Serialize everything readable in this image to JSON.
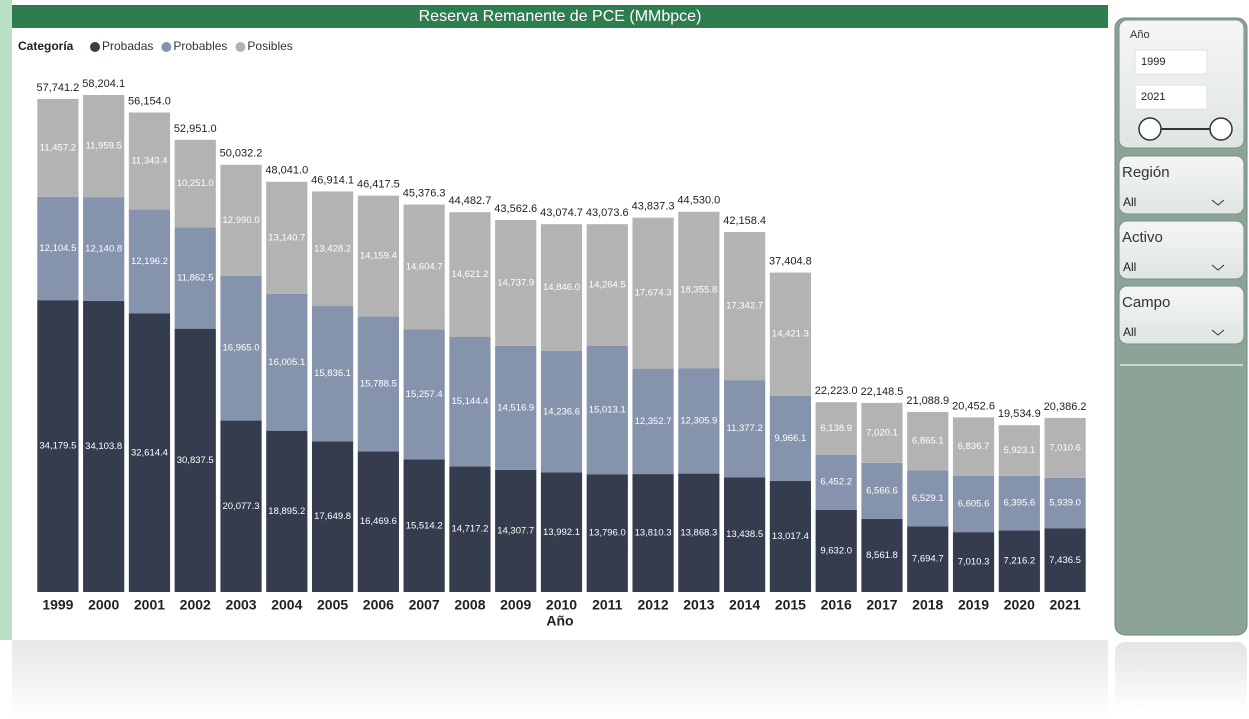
{
  "chart_data": {
    "type": "stacked_bar",
    "title": "Reserva Remanente de PCE (MMbpce)",
    "legend_title": "Categoría",
    "x_label": "Año",
    "categories": [
      "1999",
      "2000",
      "2001",
      "2002",
      "2003",
      "2004",
      "2005",
      "2006",
      "2007",
      "2008",
      "2009",
      "2010",
      "2011",
      "2012",
      "2013",
      "2014",
      "2015",
      "2016",
      "2017",
      "2018",
      "2019",
      "2020",
      "2021"
    ],
    "series": [
      {
        "name": "Probadas",
        "color": "#343c4d",
        "values": [
          34179.5,
          34103.8,
          32614.4,
          30837.5,
          20077.3,
          18895.2,
          17649.8,
          16469.6,
          15514.2,
          14717.2,
          14307.7,
          13992.1,
          13796.0,
          13810.3,
          13868.3,
          13438.5,
          13017.4,
          9632.0,
          8561.8,
          7694.7,
          7010.3,
          7216.2,
          7436.5
        ],
        "value_labels": [
          "34,179.5",
          "34,103.8",
          "32,614.4",
          "30,837.5",
          "20,077.3",
          "18,895.2",
          "17,649.8",
          "16,469.6",
          "15,514.2",
          "14,717.2",
          "14,307.7",
          "13,992.1",
          "13,796.0",
          "13,810.3",
          "13,868.3",
          "13,438.5",
          "13,017.4",
          "9,632.0",
          "8,561.8",
          "7,694.7",
          "7,010.3",
          "7,216.2",
          "7,436.5"
        ]
      },
      {
        "name": "Probables",
        "color": "#8593ad",
        "values": [
          12104.5,
          12140.8,
          12196.2,
          11862.5,
          16965.0,
          16005.1,
          15836.1,
          15788.5,
          15257.4,
          15144.4,
          14516.9,
          14236.6,
          15013.1,
          12352.7,
          12305.9,
          11377.2,
          9966.1,
          6452.2,
          6566.6,
          6529.1,
          6605.6,
          6395.6,
          5939.0
        ],
        "value_labels": [
          "12,104.5",
          "12,140.8",
          "12,196.2",
          "11,862.5",
          "16,965.0",
          "16,005.1",
          "15,836.1",
          "15,788.5",
          "15,257.4",
          "15,144.4",
          "14,516.9",
          "14,236.6",
          "15,013.1",
          "12,352.7",
          "12,305.9",
          "11,377.2",
          "9,966.1",
          "6,452.2",
          "6,566.6",
          "6,529.1",
          "6,605.6",
          "6,395.6",
          "5,939.0"
        ]
      },
      {
        "name": "Posibles",
        "color": "#b3b3b3",
        "values": [
          11457.2,
          11959.5,
          11343.4,
          10251.0,
          12990.0,
          13140.7,
          13428.2,
          14159.4,
          14604.7,
          14621.2,
          14737.9,
          14846.0,
          14264.5,
          17674.3,
          18355.8,
          17342.7,
          14421.3,
          6138.9,
          7020.1,
          6865.1,
          6836.7,
          5923.1,
          7010.6
        ],
        "value_labels": [
          "11,457.2",
          "11,959.5",
          "11,343.4",
          "10,251.0",
          "12,990.0",
          "13,140.7",
          "13,428.2",
          "14,159.4",
          "14,604.7",
          "14,621.2",
          "14,737.9",
          "14,846.0",
          "14,264.5",
          "17,674.3",
          "18,355.8",
          "17,342.7",
          "14,421.3",
          "6,138.9",
          "7,020.1",
          "6,865.1",
          "6,836.7",
          "5,923.1",
          "7,010.6"
        ]
      }
    ],
    "totals": {
      "values": [
        57741.2,
        58204.1,
        56154.0,
        52951.0,
        50032.2,
        48041.0,
        46914.1,
        46417.5,
        45376.3,
        44482.7,
        43562.6,
        43074.7,
        43073.6,
        43837.3,
        44530.0,
        42158.4,
        37404.8,
        22223.0,
        22148.5,
        21088.9,
        20452.6,
        19534.9,
        20386.2
      ],
      "value_labels": [
        "57,741.2",
        "58,204.1",
        "56,154.0",
        "52,951.0",
        "50,032.2",
        "48,041.0",
        "46,914.1",
        "46,417.5",
        "45,376.3",
        "44,482.7",
        "43,562.6",
        "43,074.7",
        "43,073.6",
        "43,837.3",
        "44,530.0",
        "42,158.4",
        "37,404.8",
        "22,223.0",
        "22,148.5",
        "21,088.9",
        "20,452.6",
        "19,534.9",
        "20,386.2"
      ]
    }
  },
  "filters": {
    "year": {
      "label": "Año",
      "from": "1999",
      "to": "2021"
    },
    "dropdowns": [
      {
        "label": "Región",
        "value": "All"
      },
      {
        "label": "Activo",
        "value": "All"
      },
      {
        "label": "Campo",
        "value": "All"
      }
    ]
  }
}
